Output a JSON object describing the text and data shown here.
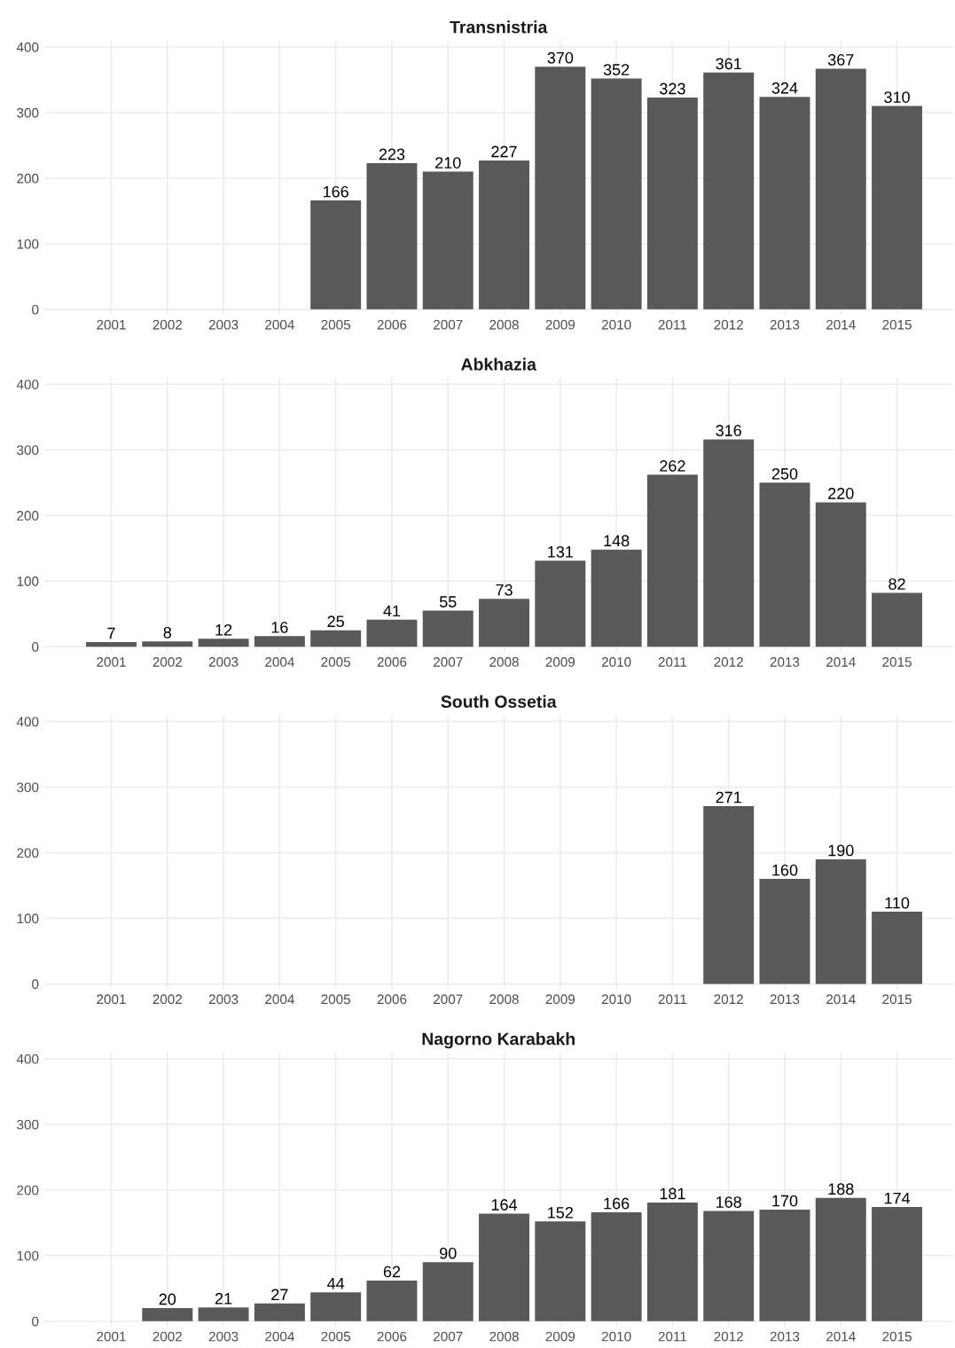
{
  "chart_data": [
    {
      "type": "bar",
      "title": "Transnistria",
      "x": [
        2005,
        2006,
        2007,
        2008,
        2009,
        2010,
        2011,
        2012,
        2013,
        2014,
        2015
      ],
      "values": [
        166,
        223,
        210,
        227,
        370,
        352,
        323,
        361,
        324,
        367,
        310
      ],
      "color": "#595959",
      "data_labels": true,
      "grid": true,
      "xlim": [
        1999.8,
        2016
      ],
      "xticks": [
        2001,
        2002,
        2003,
        2004,
        2005,
        2006,
        2007,
        2008,
        2009,
        2010,
        2011,
        2012,
        2013,
        2014,
        2015
      ],
      "ylim": [
        -8,
        410
      ],
      "yticks": [
        0,
        100,
        200,
        300,
        400
      ]
    },
    {
      "type": "bar",
      "title": "Abkhazia",
      "x": [
        2001,
        2002,
        2003,
        2004,
        2005,
        2006,
        2007,
        2008,
        2009,
        2010,
        2011,
        2012,
        2013,
        2014,
        2015
      ],
      "values": [
        7,
        8,
        12,
        16,
        25,
        41,
        55,
        73,
        131,
        148,
        262,
        316,
        250,
        220,
        82
      ],
      "color": "#595959",
      "data_labels": true,
      "grid": true,
      "xlim": [
        1999.8,
        2016
      ],
      "xticks": [
        2001,
        2002,
        2003,
        2004,
        2005,
        2006,
        2007,
        2008,
        2009,
        2010,
        2011,
        2012,
        2013,
        2014,
        2015
      ],
      "ylim": [
        -8,
        410
      ],
      "yticks": [
        0,
        100,
        200,
        300,
        400
      ]
    },
    {
      "type": "bar",
      "title": "South Ossetia",
      "x": [
        2012,
        2013,
        2014,
        2015
      ],
      "values": [
        271,
        160,
        190,
        110
      ],
      "color": "#595959",
      "data_labels": true,
      "grid": true,
      "xlim": [
        1999.8,
        2016
      ],
      "xticks": [
        2001,
        2002,
        2003,
        2004,
        2005,
        2006,
        2007,
        2008,
        2009,
        2010,
        2011,
        2012,
        2013,
        2014,
        2015
      ],
      "ylim": [
        -8,
        410
      ],
      "yticks": [
        0,
        100,
        200,
        300,
        400
      ]
    },
    {
      "type": "bar",
      "title": "Nagorno Karabakh",
      "x": [
        2002,
        2003,
        2004,
        2005,
        2006,
        2007,
        2008,
        2009,
        2010,
        2011,
        2012,
        2013,
        2014,
        2015
      ],
      "values": [
        20,
        21,
        27,
        44,
        62,
        90,
        164,
        152,
        166,
        181,
        168,
        170,
        188,
        174
      ],
      "color": "#595959",
      "data_labels": true,
      "grid": true,
      "xlim": [
        1999.8,
        2016
      ],
      "xticks": [
        2001,
        2002,
        2003,
        2004,
        2005,
        2006,
        2007,
        2008,
        2009,
        2010,
        2011,
        2012,
        2013,
        2014,
        2015
      ],
      "ylim": [
        -8,
        410
      ],
      "yticks": [
        0,
        100,
        200,
        300,
        400
      ]
    }
  ]
}
